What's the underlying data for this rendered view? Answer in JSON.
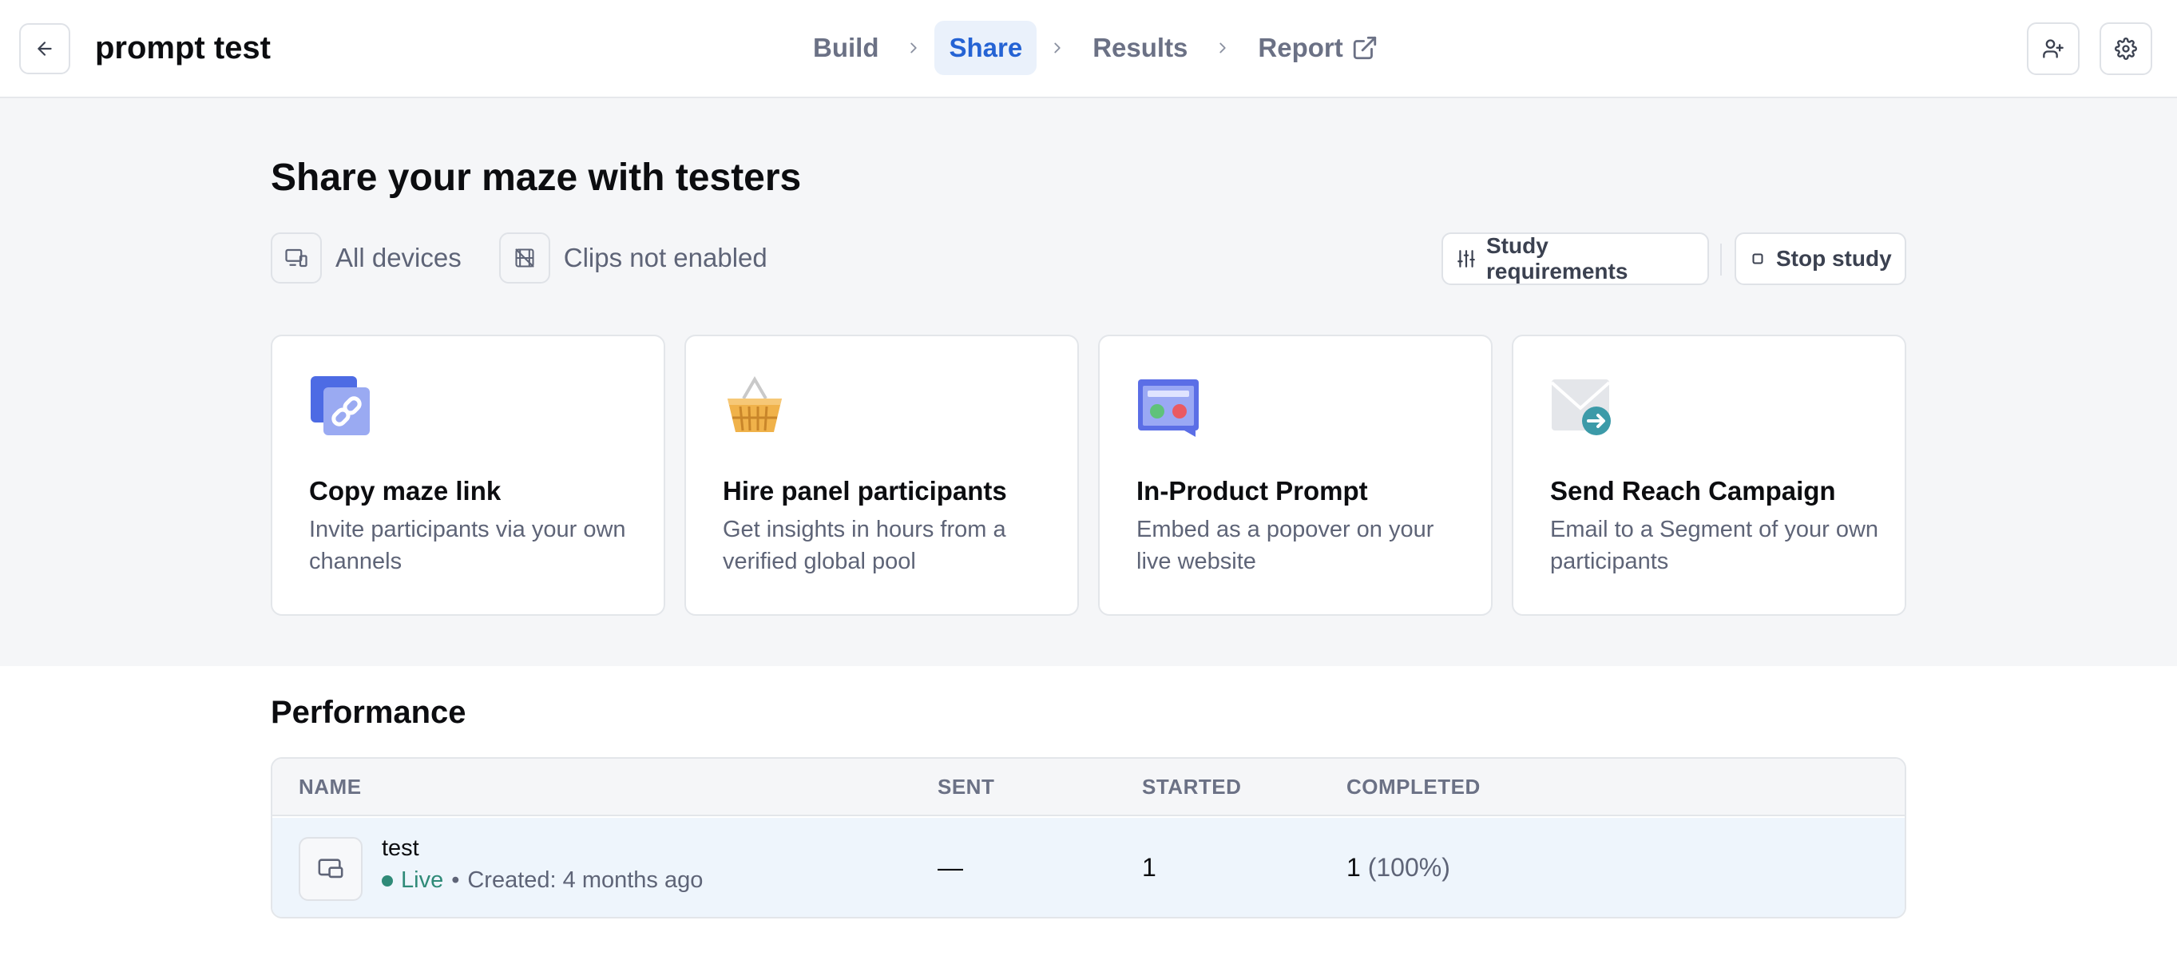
{
  "header": {
    "back_icon": "arrow-left-icon",
    "project_title": "prompt test",
    "steps": [
      {
        "label": "Build"
      },
      {
        "label": "Share"
      },
      {
        "label": "Results"
      },
      {
        "label": "Report"
      }
    ],
    "active_step": "Share",
    "accent_color": "#2563d4"
  },
  "share": {
    "title": "Share your maze with testers",
    "devices_label": "All devices",
    "clips_label": "Clips not enabled",
    "study_requirements_label": "Study requirements",
    "stop_study_label": "Stop study",
    "cards": [
      {
        "title": "Copy maze link",
        "desc": "Invite participants via your own channels",
        "icon": "link-icon"
      },
      {
        "title": "Hire panel participants",
        "desc": "Get insights in hours from a verified global pool",
        "icon": "basket-icon"
      },
      {
        "title": "In-Product Prompt",
        "desc": "Embed as a popover on your live website",
        "icon": "popover-prompt-icon"
      },
      {
        "title": "Send Reach Campaign",
        "desc": "Email to a Segment of your own participants",
        "icon": "envelope-arrow-icon"
      }
    ]
  },
  "performance": {
    "title": "Performance",
    "columns": {
      "name": "NAME",
      "sent": "SENT",
      "started": "STARTED",
      "completed": "COMPLETED"
    },
    "rows": [
      {
        "name": "test",
        "status": "Live",
        "separator": "•",
        "created": "Created: 4 months ago",
        "sent": "—",
        "started": "1",
        "completed": "1",
        "completed_pct": "(100%)"
      }
    ],
    "live_color": "#2f8a78"
  }
}
